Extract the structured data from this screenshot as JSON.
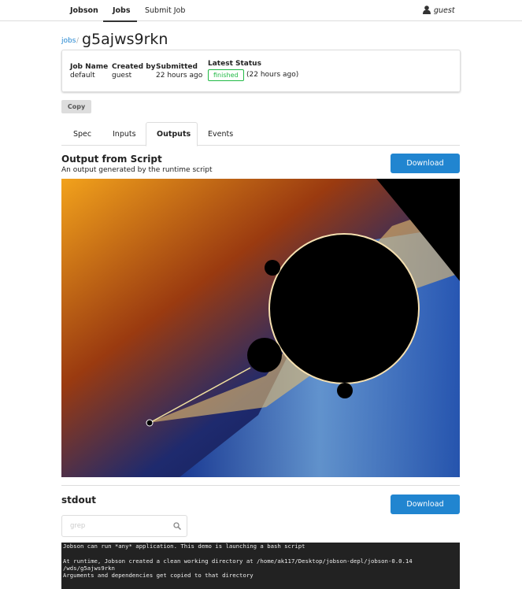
{
  "nav": {
    "brand": "Jobson",
    "links": [
      "Jobs",
      "Submit Job"
    ],
    "user": "guest"
  },
  "breadcrumb": {
    "parent": "jobs",
    "separator": "/",
    "current": "g5ajws9rkn"
  },
  "summary": {
    "fields": [
      {
        "label": "Job Name",
        "value": "default"
      },
      {
        "label": "Created by",
        "value": "guest"
      },
      {
        "label": "Submitted",
        "value": "22 hours ago"
      }
    ],
    "status": {
      "label": "Latest Status",
      "badge": "finished",
      "time": "(22 hours ago)"
    }
  },
  "copy_button": "Copy",
  "tabs": {
    "items": [
      "Spec",
      "Inputs",
      "Outputs",
      "Events"
    ],
    "active": "Outputs"
  },
  "output": {
    "title": "Output from Script",
    "description": "An output generated by the runtime script",
    "download": "Download"
  },
  "stdout": {
    "title": "stdout",
    "download": "Download",
    "search_placeholder": "grep",
    "lines": [
      "Jobson can run *any* application. This demo is launching a bash script",
      "At runtime, Jobson created a clean working directory at /home/ak117/Desktop/jobson-depl/jobson-0.0.14",
      "/wds/g5ajws9rkn",
      "Arguments and dependencies get copied to that directory"
    ]
  }
}
